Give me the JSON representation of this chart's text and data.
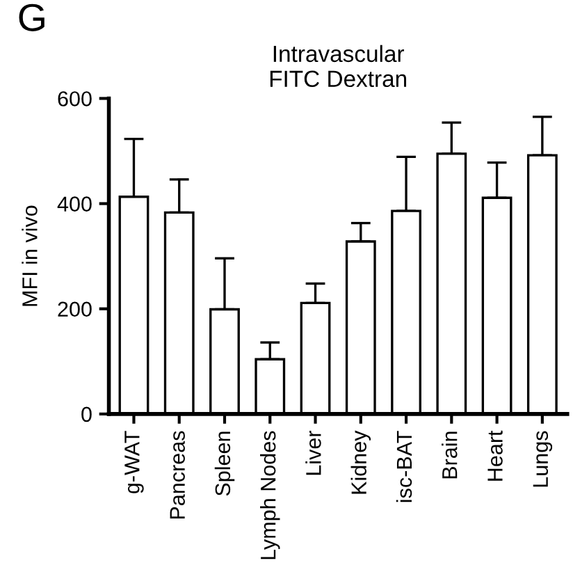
{
  "chart_data": {
    "type": "bar",
    "title": "Intravascular\nFITC Dextran",
    "ylabel": "MFI in vivo",
    "categories": [
      "g-WAT",
      "Pancreas",
      "Spleen",
      "Lymph Nodes",
      "Liver",
      "Kidney",
      "isc-BAT",
      "Brain",
      "Heart",
      "Lungs"
    ],
    "values": [
      413,
      383,
      199,
      104,
      211,
      328,
      386,
      495,
      411,
      492
    ],
    "errors": [
      [
        413,
        523
      ],
      [
        383,
        446
      ],
      [
        199,
        296
      ],
      [
        104,
        136
      ],
      [
        211,
        248
      ],
      [
        328,
        363
      ],
      [
        386,
        489
      ],
      [
        495,
        554
      ],
      [
        411,
        478
      ],
      [
        492,
        565
      ]
    ],
    "color": "#ffffff",
    "ylim": [
      0,
      600
    ],
    "yticks": [
      0,
      200,
      400,
      600
    ],
    "grid": false,
    "legend": false,
    "annotations": [
      "G"
    ]
  }
}
